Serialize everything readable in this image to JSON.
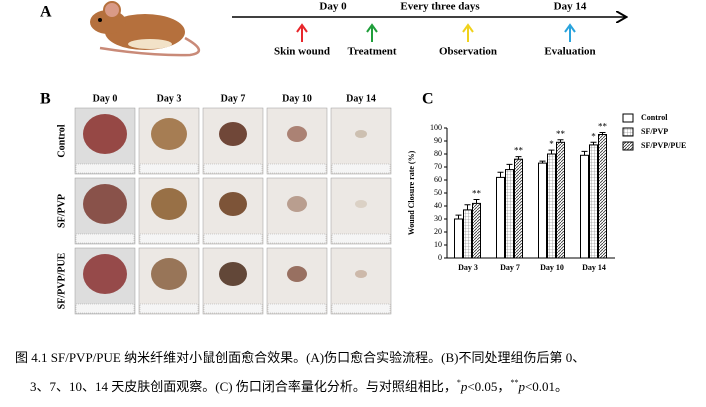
{
  "panel_a": {
    "letter": "A",
    "timeline": [
      "Day 0",
      "Every three days",
      "Day 14"
    ],
    "steps": [
      {
        "label": "Skin wound",
        "color": "#e8262b"
      },
      {
        "label": "Treatment",
        "color": "#1f9e3a"
      },
      {
        "label": "Observation",
        "color": "#f0d21c"
      },
      {
        "label": "Evaluation",
        "color": "#29a3dc"
      }
    ]
  },
  "panel_b": {
    "letter": "B",
    "columns": [
      "Day 0",
      "Day 3",
      "Day 7",
      "Day 10",
      "Day 14"
    ],
    "rows": [
      "Control",
      "SF/PVP",
      "SF/PVP/PUE"
    ]
  },
  "chart_data": {
    "type": "bar",
    "letter": "C",
    "y_label": "Wound Closure rate (%)",
    "categories": [
      "Day 3",
      "Day 7",
      "Day 10",
      "Day 14"
    ],
    "series": [
      {
        "name": "Control",
        "color": "#000000",
        "fill": "none",
        "values": [
          30,
          62,
          73,
          79
        ],
        "errors": [
          3,
          4,
          1.5,
          3
        ],
        "significance": [
          null,
          null,
          null,
          null
        ]
      },
      {
        "name": "SF/PVP",
        "color": "#000000",
        "fill": "grid",
        "values": [
          37,
          68,
          80,
          87
        ],
        "errors": [
          4,
          4,
          3,
          2
        ],
        "significance": [
          null,
          null,
          "*",
          "*"
        ]
      },
      {
        "name": "SF/PVP/PUE",
        "color": "#000000",
        "fill": "hatch",
        "values": [
          42,
          76,
          89,
          95
        ],
        "errors": [
          3,
          2,
          2,
          1.5
        ],
        "significance": [
          "**",
          "**",
          "**",
          "**"
        ]
      }
    ],
    "ylim": [
      0,
      100
    ],
    "yticks": [
      0,
      10,
      20,
      30,
      40,
      50,
      60,
      70,
      80,
      90,
      100
    ],
    "legend": "top-right"
  },
  "caption": {
    "line1": "图 4.1 SF/PVP/PUE 纳米纤维对小鼠创面愈合效果。(A)伤口愈合实验流程。(B)不同处理组伤后第 0、",
    "line2": [
      "3、7、10、14 天皮肤创面观察。(C) 伤口闭合率量化分析。与对照组相比，",
      "*",
      "p",
      "<0.05，",
      "**",
      "p",
      "<0.01。"
    ]
  }
}
